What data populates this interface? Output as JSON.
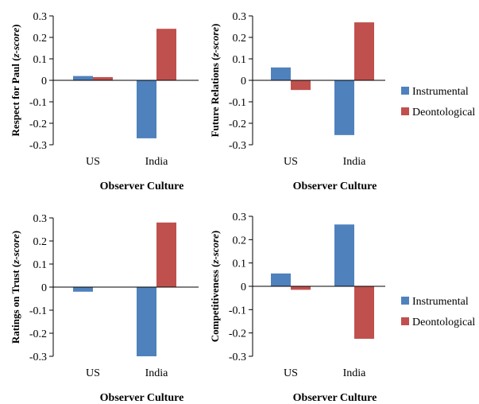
{
  "colors": {
    "instrumental": "#4f81bd",
    "deontological": "#c0504d"
  },
  "legend": [
    "Instrumental",
    "Deontological"
  ],
  "chart_data": [
    {
      "type": "bar",
      "categories": [
        "US",
        "India"
      ],
      "series": [
        {
          "name": "Instrumental",
          "values": [
            0.02,
            -0.27
          ]
        },
        {
          "name": "Deontological",
          "values": [
            0.015,
            0.24
          ]
        }
      ],
      "xlabel": "Observer Culture",
      "ylabel_parts": [
        "Respect for Paul (",
        "z-score",
        ")"
      ],
      "ylim": [
        -0.3,
        0.3
      ],
      "yticks": [
        "0.3",
        "0.2",
        "0.1",
        "0",
        "-0.1",
        "-0.2",
        "-0.3"
      ]
    },
    {
      "type": "bar",
      "categories": [
        "US",
        "India"
      ],
      "series": [
        {
          "name": "Instrumental",
          "values": [
            0.06,
            -0.255
          ]
        },
        {
          "name": "Deontological",
          "values": [
            -0.045,
            0.27
          ]
        }
      ],
      "xlabel": "Observer Culture",
      "ylabel_parts": [
        "Future Relations (",
        "z-score",
        ")"
      ],
      "ylim": [
        -0.3,
        0.3
      ],
      "yticks": [
        "0.3",
        "0.2",
        "0.1",
        "0",
        "-0.1",
        "-0.2",
        "-0.3"
      ]
    },
    {
      "type": "bar",
      "categories": [
        "US",
        "India"
      ],
      "series": [
        {
          "name": "Instrumental",
          "values": [
            -0.02,
            -0.3
          ]
        },
        {
          "name": "Deontological",
          "values": [
            0.0,
            0.28
          ]
        }
      ],
      "xlabel": "Observer Culture",
      "ylabel_parts": [
        "Ratings on Trust (",
        "z-score",
        ")"
      ],
      "ylim": [
        -0.3,
        0.3
      ],
      "yticks": [
        "0.3",
        "0.2",
        "0.1",
        "0",
        "-0.1",
        "-0.2",
        "-0.3"
      ]
    },
    {
      "type": "bar",
      "categories": [
        "US",
        "India"
      ],
      "series": [
        {
          "name": "Instrumental",
          "values": [
            0.055,
            0.265
          ]
        },
        {
          "name": "Deontological",
          "values": [
            -0.015,
            -0.225
          ]
        }
      ],
      "xlabel": "Observer Culture",
      "ylabel_parts": [
        "Competitiveness (",
        "z-score",
        ")"
      ],
      "ylim": [
        -0.3,
        0.3
      ],
      "yticks": [
        "0.3",
        "0.2",
        "0.1",
        "0",
        "-0.1",
        "-0.2",
        "-0.3"
      ]
    }
  ]
}
